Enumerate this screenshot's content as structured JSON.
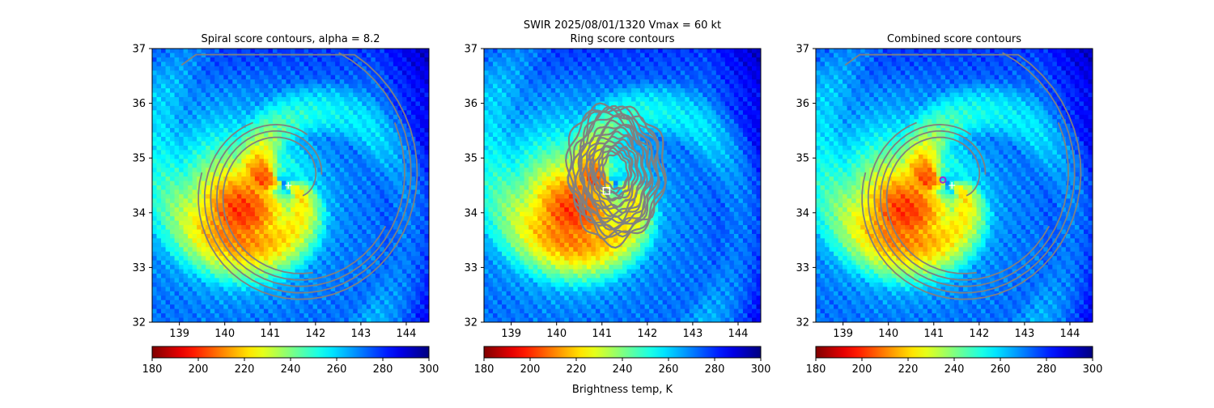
{
  "figure": {
    "suptitle_line1": "SWIR  2025/08/01/1320    Vmax = 60 kt",
    "colorbar_label": "Brightness temp, K"
  },
  "colors": {
    "contour": "#808080",
    "center_marker": "#ffffff",
    "combined_marker": "#9a2fcf"
  },
  "chart_data": [
    {
      "type": "heatmap",
      "title": "Spiral score contours, alpha =  8.2",
      "xlim": [
        138.4,
        144.5
      ],
      "ylim": [
        32,
        37
      ],
      "xticks": [
        139,
        140,
        141,
        142,
        143,
        144
      ],
      "yticks": [
        32,
        33,
        34,
        35,
        36,
        37
      ],
      "colorbar": {
        "range": [
          180,
          300
        ],
        "ticks": [
          180,
          200,
          220,
          240,
          260,
          280,
          300
        ],
        "colormap": "jet_r"
      },
      "center": [
        141.4,
        34.5
      ],
      "contours": "spiral",
      "marker": "cross"
    },
    {
      "type": "heatmap",
      "title": "Ring score contours",
      "xlim": [
        138.4,
        144.5
      ],
      "ylim": [
        32,
        37
      ],
      "xticks": [
        139,
        140,
        141,
        142,
        143,
        144
      ],
      "yticks": [
        32,
        33,
        34,
        35,
        36,
        37
      ],
      "colorbar": {
        "range": [
          180,
          300
        ],
        "ticks": [
          180,
          200,
          220,
          240,
          260,
          280,
          300
        ],
        "colormap": "jet_r"
      },
      "center": [
        141.1,
        34.4
      ],
      "contours": "ring",
      "marker": "square"
    },
    {
      "type": "heatmap",
      "title": "Combined score contours",
      "xlim": [
        138.4,
        144.5
      ],
      "ylim": [
        32,
        37
      ],
      "xticks": [
        139,
        140,
        141,
        142,
        143,
        144
      ],
      "yticks": [
        32,
        33,
        34,
        35,
        36,
        37
      ],
      "colorbar": {
        "range": [
          180,
          300
        ],
        "ticks": [
          180,
          200,
          220,
          240,
          260,
          280,
          300
        ],
        "colormap": "jet_r"
      },
      "center": [
        141.4,
        34.5
      ],
      "circle_center": [
        141.2,
        34.6
      ],
      "contours": "spiral",
      "marker": "cross+circle"
    }
  ]
}
